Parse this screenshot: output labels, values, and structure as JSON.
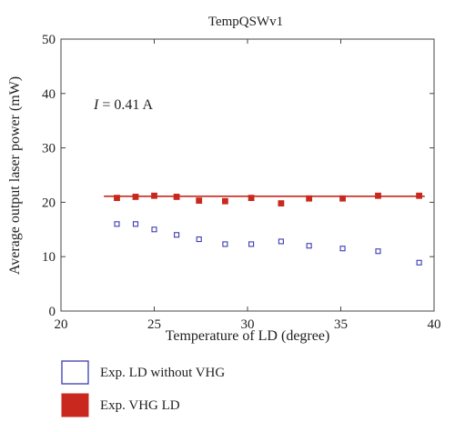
{
  "chart_data": {
    "type": "scatter",
    "title": "TempQSWv1",
    "xlabel": "Temperature of LD (degree)",
    "ylabel": "Average output laser power (mW)",
    "xlim": [
      20,
      40
    ],
    "ylim": [
      0,
      50
    ],
    "xticks": [
      20,
      25,
      30,
      35,
      40
    ],
    "yticks": [
      0,
      10,
      20,
      30,
      40,
      50
    ],
    "grid": false,
    "legend_position": "bottom",
    "annotation": {
      "symbol": "I",
      "text": " = 0.41 A"
    },
    "series": [
      {
        "name": "Exp. LD without VHG",
        "marker": "open-square",
        "color": "#3b3bb0",
        "points": [
          {
            "x": 23.0,
            "y": 16.0
          },
          {
            "x": 24.0,
            "y": 16.0
          },
          {
            "x": 25.0,
            "y": 15.0
          },
          {
            "x": 26.2,
            "y": 14.0
          },
          {
            "x": 27.4,
            "y": 13.2
          },
          {
            "x": 28.8,
            "y": 12.3
          },
          {
            "x": 30.2,
            "y": 12.3
          },
          {
            "x": 31.8,
            "y": 12.8
          },
          {
            "x": 33.3,
            "y": 12.0
          },
          {
            "x": 35.1,
            "y": 11.5
          },
          {
            "x": 37.0,
            "y": 11.0
          },
          {
            "x": 39.2,
            "y": 8.9
          }
        ]
      },
      {
        "name": "Exp. VHG LD",
        "marker": "filled-square",
        "color": "#c8281e",
        "points": [
          {
            "x": 23.0,
            "y": 20.8
          },
          {
            "x": 24.0,
            "y": 21.0
          },
          {
            "x": 25.0,
            "y": 21.2
          },
          {
            "x": 26.2,
            "y": 21.0
          },
          {
            "x": 27.4,
            "y": 20.3
          },
          {
            "x": 28.8,
            "y": 20.2
          },
          {
            "x": 30.2,
            "y": 20.8
          },
          {
            "x": 31.8,
            "y": 19.8
          },
          {
            "x": 33.3,
            "y": 20.7
          },
          {
            "x": 35.1,
            "y": 20.7
          },
          {
            "x": 37.0,
            "y": 21.2
          },
          {
            "x": 39.2,
            "y": 21.2
          }
        ],
        "fit_line": {
          "x": [
            22.3,
            39.5
          ],
          "y": [
            21.1,
            21.1
          ],
          "color": "#c8281e"
        }
      }
    ]
  }
}
